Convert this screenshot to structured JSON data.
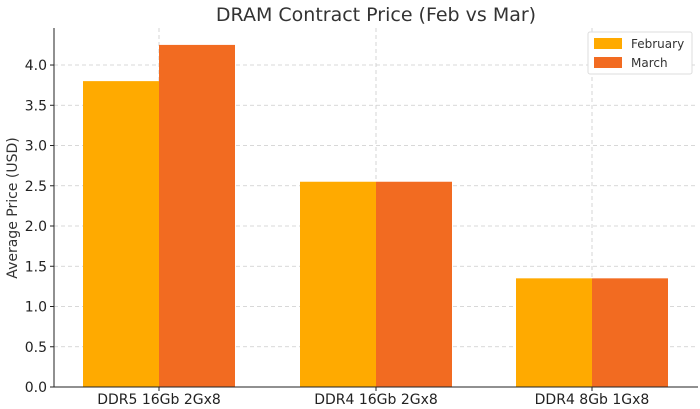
{
  "chart_data": {
    "type": "bar",
    "title": "DRAM Contract Price (Feb vs Mar)",
    "xlabel": "",
    "ylabel": "Average Price (USD)",
    "categories": [
      "DDR5 16Gb 2Gx8",
      "DDR4 16Gb 2Gx8",
      "DDR4 8Gb 1Gx8"
    ],
    "series": [
      {
        "name": "February",
        "color": "#FFAA00",
        "values": [
          3.8,
          2.55,
          1.35
        ]
      },
      {
        "name": "March",
        "color": "#F26B21",
        "values": [
          4.25,
          2.55,
          1.35
        ]
      }
    ],
    "ylim": [
      0,
      4.46
    ],
    "yticks": [
      "0.0",
      "0.5",
      "1.0",
      "1.5",
      "2.0",
      "2.5",
      "3.0",
      "3.5",
      "4.0"
    ],
    "grid": true,
    "legend_position": "top-right"
  }
}
